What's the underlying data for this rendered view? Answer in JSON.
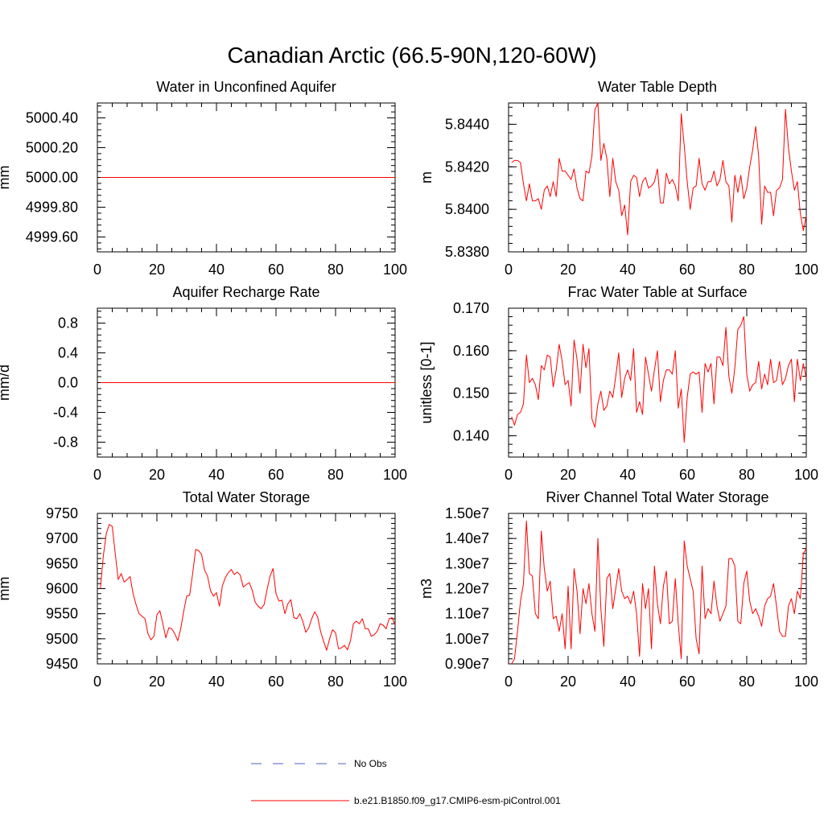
{
  "figure": {
    "title": "Canadian Arctic (66.5-90N,120-60W)",
    "colors": {
      "model_line": "#ff0000",
      "obs_line": "#4f5ec6",
      "axis": "#000000"
    }
  },
  "legend": [
    {
      "label": "No Obs",
      "style": "dashed",
      "color": "#4f5ec6"
    },
    {
      "label": "b.e21.B1850.f09_g17.CMIP6-esm-piControl.001",
      "style": "solid",
      "color": "#ff0000"
    }
  ],
  "chart_data": [
    {
      "type": "line",
      "title": "Water in Unconfined Aquifer",
      "xlabel": "",
      "ylabel": "mm",
      "xlim": [
        0,
        100
      ],
      "ylim": [
        4999.5,
        5000.5
      ],
      "xticks": [
        0,
        20,
        40,
        60,
        80,
        100
      ],
      "xtick_labels": [
        "0",
        "20",
        "40",
        "60",
        "80",
        "100"
      ],
      "yticks": [
        4999.6,
        4999.8,
        5000.0,
        5000.2,
        5000.4
      ],
      "ytick_labels": [
        "4999.60",
        "4999.80",
        "5000.00",
        "5000.20",
        "5000.40"
      ],
      "grid": false,
      "series": [
        {
          "x_start": 1,
          "x_step": 1,
          "values": [
            5000,
            5000,
            5000,
            5000,
            5000,
            5000,
            5000,
            5000,
            5000,
            5000,
            5000,
            5000,
            5000,
            5000,
            5000,
            5000,
            5000,
            5000,
            5000,
            5000,
            5000,
            5000,
            5000,
            5000,
            5000,
            5000,
            5000,
            5000,
            5000,
            5000,
            5000,
            5000,
            5000,
            5000,
            5000,
            5000,
            5000,
            5000,
            5000,
            5000,
            5000,
            5000,
            5000,
            5000,
            5000,
            5000,
            5000,
            5000,
            5000,
            5000,
            5000,
            5000,
            5000,
            5000,
            5000,
            5000,
            5000,
            5000,
            5000,
            5000,
            5000,
            5000,
            5000,
            5000,
            5000,
            5000,
            5000,
            5000,
            5000,
            5000,
            5000,
            5000,
            5000,
            5000,
            5000,
            5000,
            5000,
            5000,
            5000,
            5000,
            5000,
            5000,
            5000,
            5000,
            5000,
            5000,
            5000,
            5000,
            5000,
            5000,
            5000,
            5000,
            5000,
            5000,
            5000,
            5000,
            5000,
            5000,
            5000,
            5000
          ]
        }
      ]
    },
    {
      "type": "line",
      "title": "Water Table Depth",
      "xlabel": "",
      "ylabel": "m",
      "xlim": [
        0,
        100
      ],
      "ylim": [
        5.838,
        5.845
      ],
      "xticks": [
        0,
        20,
        40,
        60,
        80,
        100
      ],
      "xtick_labels": [
        "0",
        "20",
        "40",
        "60",
        "80",
        "100"
      ],
      "yticks": [
        5.838,
        5.84,
        5.842,
        5.844
      ],
      "ytick_labels": [
        "5.8380",
        "5.8400",
        "5.8420",
        "5.8440"
      ],
      "grid": false,
      "series": [
        {
          "x_start": 1,
          "x_step": 1,
          "values": [
            5.8422,
            5.8423,
            5.8423,
            5.8422,
            5.8412,
            5.8404,
            5.8412,
            5.8404,
            5.8404,
            5.8405,
            5.84,
            5.8409,
            5.8411,
            5.8406,
            5.8413,
            5.8406,
            5.8424,
            5.8418,
            5.8418,
            5.8416,
            5.8414,
            5.8419,
            5.841,
            5.8405,
            5.8404,
            5.8418,
            5.8417,
            5.8425,
            5.8447,
            5.845,
            5.8423,
            5.8431,
            5.8424,
            5.8406,
            5.8424,
            5.8413,
            5.8409,
            5.8397,
            5.8402,
            5.8388,
            5.8413,
            5.8416,
            5.8415,
            5.8406,
            5.8413,
            5.8415,
            5.841,
            5.8411,
            5.8413,
            5.8419,
            5.8403,
            5.8403,
            5.8417,
            5.8412,
            5.8414,
            5.8411,
            5.8404,
            5.8445,
            5.843,
            5.8413,
            5.84,
            5.841,
            5.8411,
            5.8424,
            5.8412,
            5.8409,
            5.8413,
            5.8413,
            5.8418,
            5.8411,
            5.8414,
            5.8423,
            5.8413,
            5.8411,
            5.8394,
            5.8416,
            5.8408,
            5.8416,
            5.8405,
            5.841,
            5.842,
            5.8428,
            5.8439,
            5.8425,
            5.8393,
            5.8411,
            5.8408,
            5.8408,
            5.8397,
            5.8409,
            5.841,
            5.8414,
            5.8447,
            5.8429,
            5.8418,
            5.8409,
            5.8413,
            5.8398,
            5.839,
            5.8397
          ]
        }
      ]
    },
    {
      "type": "line",
      "title": "Aquifer Recharge Rate",
      "xlabel": "",
      "ylabel": "mm/d",
      "xlim": [
        0,
        100
      ],
      "ylim": [
        -1.0,
        1.0
      ],
      "xticks": [
        0,
        20,
        40,
        60,
        80,
        100
      ],
      "xtick_labels": [
        "0",
        "20",
        "40",
        "60",
        "80",
        "100"
      ],
      "yticks": [
        -0.8,
        -0.4,
        0.0,
        0.4,
        0.8
      ],
      "ytick_labels": [
        "-0.8",
        "-0.4",
        "0.0",
        "0.4",
        "0.8"
      ],
      "grid": false,
      "series": [
        {
          "x_start": 1,
          "x_step": 1,
          "values": [
            0,
            0,
            0,
            0,
            0,
            0,
            0,
            0,
            0,
            0,
            0,
            0,
            0,
            0,
            0,
            0,
            0,
            0,
            0,
            0,
            0,
            0,
            0,
            0,
            0,
            0,
            0,
            0,
            0,
            0,
            0,
            0,
            0,
            0,
            0,
            0,
            0,
            0,
            0,
            0,
            0,
            0,
            0,
            0,
            0,
            0,
            0,
            0,
            0,
            0,
            0,
            0,
            0,
            0,
            0,
            0,
            0,
            0,
            0,
            0,
            0,
            0,
            0,
            0,
            0,
            0,
            0,
            0,
            0,
            0,
            0,
            0,
            0,
            0,
            0,
            0,
            0,
            0,
            0,
            0,
            0,
            0,
            0,
            0,
            0,
            0,
            0,
            0,
            0,
            0,
            0,
            0,
            0,
            0,
            0,
            0,
            0,
            0,
            0,
            0
          ]
        }
      ]
    },
    {
      "type": "line",
      "title": "Frac Water Table at Surface",
      "xlabel": "",
      "ylabel": "unitless [0-1]",
      "xlim": [
        0,
        100
      ],
      "ylim": [
        0.135,
        0.17
      ],
      "xticks": [
        0,
        20,
        40,
        60,
        80,
        100
      ],
      "xtick_labels": [
        "0",
        "20",
        "40",
        "60",
        "80",
        "100"
      ],
      "yticks": [
        0.14,
        0.15,
        0.16,
        0.17
      ],
      "ytick_labels": [
        "0.140",
        "0.150",
        "0.160",
        "0.170"
      ],
      "grid": false,
      "series": [
        {
          "x_start": 1,
          "x_step": 1,
          "values": [
            0.1445,
            0.1425,
            0.145,
            0.1455,
            0.1475,
            0.159,
            0.1525,
            0.1535,
            0.152,
            0.1485,
            0.1565,
            0.1555,
            0.159,
            0.1585,
            0.1515,
            0.1555,
            0.1615,
            0.1575,
            0.152,
            0.153,
            0.147,
            0.1625,
            0.158,
            0.15,
            0.1615,
            0.156,
            0.1605,
            0.144,
            0.142,
            0.1475,
            0.1505,
            0.146,
            0.147,
            0.1505,
            0.149,
            0.154,
            0.1595,
            0.149,
            0.1535,
            0.1555,
            0.153,
            0.1605,
            0.1455,
            0.148,
            0.145,
            0.1585,
            0.1545,
            0.1505,
            0.1555,
            0.16,
            0.148,
            0.153,
            0.1555,
            0.1555,
            0.1545,
            0.16,
            0.1465,
            0.151,
            0.1385,
            0.149,
            0.1545,
            0.155,
            0.1545,
            0.155,
            0.1455,
            0.157,
            0.155,
            0.157,
            0.1475,
            0.1585,
            0.1585,
            0.1565,
            0.1655,
            0.154,
            0.15,
            0.156,
            0.165,
            0.166,
            0.168,
            0.1545,
            0.1505,
            0.152,
            0.1525,
            0.1575,
            0.151,
            0.1545,
            0.152,
            0.158,
            0.1525,
            0.153,
            0.1575,
            0.152,
            0.1535,
            0.1565,
            0.158,
            0.148,
            0.158,
            0.153,
            0.157,
            0.1535
          ]
        }
      ]
    },
    {
      "type": "line",
      "title": "Total Water Storage",
      "xlabel": "",
      "ylabel": "mm",
      "xlim": [
        0,
        100
      ],
      "ylim": [
        9450,
        9750
      ],
      "xticks": [
        0,
        20,
        40,
        60,
        80,
        100
      ],
      "xtick_labels": [
        "0",
        "20",
        "40",
        "60",
        "80",
        "100"
      ],
      "yticks": [
        9450,
        9500,
        9550,
        9600,
        9650,
        9700,
        9750
      ],
      "ytick_labels": [
        "9450",
        "9500",
        "9550",
        "9600",
        "9650",
        "9700",
        "9750"
      ],
      "grid": false,
      "series": [
        {
          "x_start": 1,
          "x_step": 1,
          "values": [
            9600,
            9665,
            9710,
            9728,
            9724,
            9670,
            9618,
            9630,
            9613,
            9618,
            9624,
            9590,
            9568,
            9550,
            9545,
            9540,
            9510,
            9498,
            9505,
            9548,
            9556,
            9530,
            9502,
            9522,
            9520,
            9510,
            9496,
            9520,
            9555,
            9585,
            9587,
            9630,
            9678,
            9676,
            9668,
            9637,
            9625,
            9596,
            9585,
            9592,
            9565,
            9606,
            9622,
            9632,
            9638,
            9628,
            9633,
            9627,
            9603,
            9608,
            9612,
            9597,
            9573,
            9565,
            9560,
            9568,
            9598,
            9625,
            9640,
            9590,
            9575,
            9577,
            9550,
            9570,
            9578,
            9542,
            9540,
            9550,
            9535,
            9513,
            9522,
            9540,
            9554,
            9543,
            9514,
            9495,
            9477,
            9500,
            9518,
            9512,
            9480,
            9482,
            9487,
            9478,
            9496,
            9530,
            9535,
            9530,
            9540,
            9520,
            9520,
            9505,
            9508,
            9515,
            9530,
            9527,
            9520,
            9540,
            9542,
            9528
          ]
        }
      ]
    },
    {
      "type": "line",
      "title": "River Channel Total Water Storage",
      "xlabel": "",
      "ylabel": "m3",
      "xlim": [
        0,
        100
      ],
      "ylim": [
        9000000.0,
        15000000.0
      ],
      "xticks": [
        0,
        20,
        40,
        60,
        80,
        100
      ],
      "xtick_labels": [
        "0",
        "20",
        "40",
        "60",
        "80",
        "100"
      ],
      "yticks": [
        9000000.0,
        10000000.0,
        11000000.0,
        12000000.0,
        13000000.0,
        14000000.0,
        15000000.0
      ],
      "ytick_labels": [
        "0.90e7",
        "1.00e7",
        "1.10e7",
        "1.20e7",
        "1.30e7",
        "1.40e7",
        "1.50e7"
      ],
      "grid": false,
      "series": [
        {
          "x_start": 1,
          "x_step": 1,
          "values": [
            9000000,
            9200000,
            10300000,
            11500000,
            12200000,
            14700000,
            12600000,
            12500000,
            11000000,
            10800000,
            14300000,
            12800000,
            11900000,
            12300000,
            10800000,
            10900000,
            10300000,
            11000000,
            9600000,
            12100000,
            9600000,
            12800000,
            11900000,
            10200000,
            12000000,
            11400000,
            12200000,
            11000000,
            10300000,
            14000000,
            11200000,
            9700000,
            12400000,
            12600000,
            11200000,
            12000000,
            12800000,
            11900000,
            11600000,
            11700000,
            11400000,
            11900000,
            11000000,
            9300000,
            12200000,
            11200000,
            12000000,
            9600000,
            12900000,
            11400000,
            10600000,
            12100000,
            12700000,
            10600000,
            10700000,
            12400000,
            10600000,
            9200000,
            13900000,
            12900000,
            12400000,
            11900000,
            10000000,
            9400000,
            12900000,
            10800000,
            11200000,
            11000000,
            12300000,
            11300000,
            10700000,
            11000000,
            11300000,
            13200000,
            13200000,
            12900000,
            10700000,
            10600000,
            12200000,
            12700000,
            11500000,
            11000000,
            11200000,
            10900000,
            10500000,
            11300000,
            11600000,
            11700000,
            12200000,
            11300000,
            10300000,
            10100000,
            10100000,
            11300000,
            11600000,
            11000000,
            11900000,
            11600000,
            13400000,
            13600000
          ]
        }
      ]
    }
  ]
}
